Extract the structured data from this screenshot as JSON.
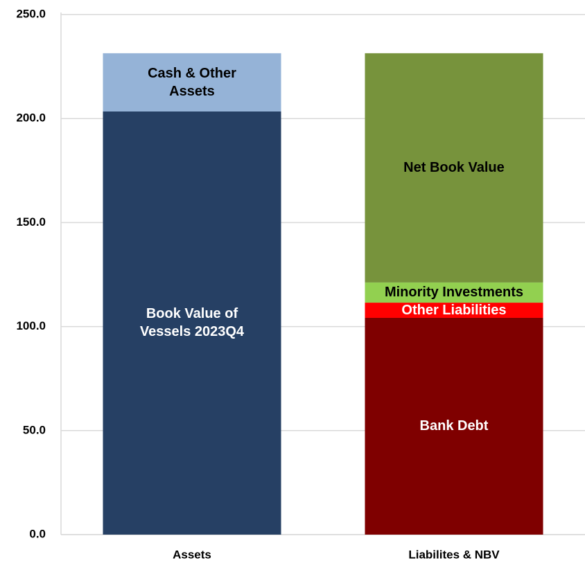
{
  "chart_data": {
    "type": "stacked_bar",
    "categories": [
      "Assets",
      "Liabilites & NBV"
    ],
    "series": [
      {
        "name": "Book Value of Vessels 2023Q4",
        "color": "#264064",
        "values": [
          203.4,
          null
        ]
      },
      {
        "name": "Cash & Other Assets",
        "color": "#95b3d7",
        "values": [
          28.0,
          null
        ]
      },
      {
        "name": "Bank Debt",
        "color": "#7f0000",
        "values": [
          null,
          104.2
        ]
      },
      {
        "name": "Other Liabilities",
        "color": "#ff0000",
        "values": [
          null,
          7.3
        ]
      },
      {
        "name": "Minority Investments",
        "color": "#92d050",
        "values": [
          null,
          9.7
        ]
      },
      {
        "name": "Net Book Value",
        "color": "#77933c",
        "values": [
          null,
          110.2
        ]
      }
    ],
    "ylim": [
      0,
      250
    ],
    "yticks": [
      {
        "value": 0,
        "label": "0.0"
      },
      {
        "value": 50,
        "label": "50.0"
      },
      {
        "value": 100,
        "label": "100.0"
      },
      {
        "value": 150,
        "label": "150.0"
      },
      {
        "value": 200,
        "label": "200.0"
      },
      {
        "value": 250,
        "label": "250.0"
      }
    ],
    "grid": true
  }
}
